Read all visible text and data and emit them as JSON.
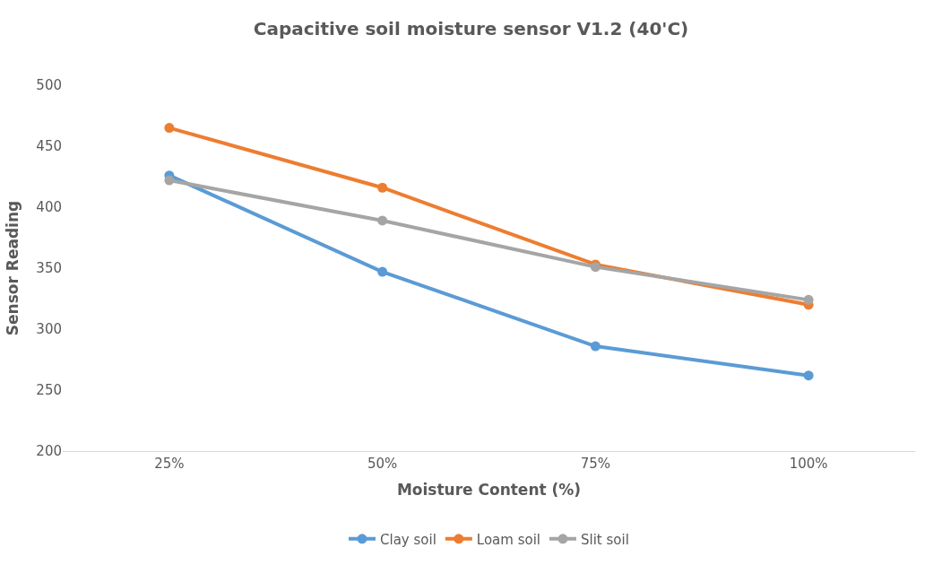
{
  "chart_data": {
    "type": "line",
    "title": "Capacitive soil moisture sensor V1.2 (40'C)",
    "xlabel": "Moisture Content (%)",
    "ylabel": "Sensor Reading",
    "categories": [
      "25%",
      "50%",
      "75%",
      "100%"
    ],
    "series": [
      {
        "name": "Clay soil",
        "color": "#5b9bd5",
        "values": [
          426,
          347,
          286,
          262
        ]
      },
      {
        "name": "Loam soil",
        "color": "#ed7d31",
        "values": [
          465,
          416,
          353,
          320
        ]
      },
      {
        "name": "Slit soil",
        "color": "#a5a5a5",
        "values": [
          422,
          389,
          351,
          324
        ]
      }
    ],
    "ylim": [
      200,
      500
    ],
    "yticks": [
      200,
      250,
      300,
      350,
      400,
      450,
      500
    ],
    "grid": false,
    "legend": "bottom",
    "marker": "circle",
    "line_style": "solid"
  }
}
